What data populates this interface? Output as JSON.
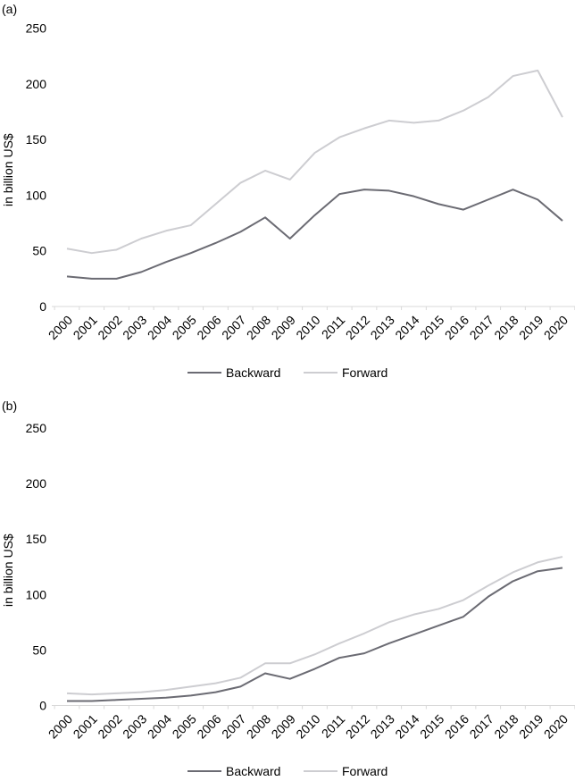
{
  "style": {
    "background": "#ffffff",
    "axis_color": "#d9d9d9",
    "text_color": "#000000",
    "backward_color": "#6b6b73",
    "forward_color": "#cdcdd1"
  },
  "panels": [
    {
      "label": "(a)",
      "ylabel": "in billion US$"
    },
    {
      "label": "(b)",
      "ylabel": "in billion US$"
    }
  ],
  "chart_data": [
    {
      "type": "line",
      "panel": "(a)",
      "title": "",
      "xlabel": "",
      "ylabel": "in billion US$",
      "x": [
        2000,
        2001,
        2002,
        2003,
        2004,
        2005,
        2006,
        2007,
        2008,
        2009,
        2010,
        2011,
        2012,
        2013,
        2014,
        2015,
        2016,
        2017,
        2018,
        2019,
        2020
      ],
      "series": [
        {
          "name": "Backward",
          "color": "#6b6b73",
          "values": [
            27,
            25,
            25,
            31,
            40,
            48,
            57,
            67,
            80,
            61,
            82,
            101,
            105,
            104,
            99,
            92,
            87,
            96,
            105,
            96,
            77
          ]
        },
        {
          "name": "Forward",
          "color": "#cdcdd1",
          "values": [
            52,
            48,
            51,
            61,
            68,
            73,
            92,
            111,
            122,
            114,
            138,
            152,
            160,
            167,
            165,
            167,
            176,
            188,
            207,
            212,
            170
          ]
        }
      ],
      "ylim": [
        0,
        250
      ],
      "yticks": [
        0,
        50,
        100,
        150,
        200,
        250
      ],
      "grid": false,
      "legend_position": "bottom"
    },
    {
      "type": "line",
      "panel": "(b)",
      "title": "",
      "xlabel": "",
      "ylabel": "in billion US$",
      "x": [
        2000,
        2001,
        2002,
        2003,
        2004,
        2005,
        2006,
        2007,
        2008,
        2009,
        2010,
        2011,
        2012,
        2013,
        2014,
        2015,
        2016,
        2017,
        2018,
        2019,
        2020
      ],
      "series": [
        {
          "name": "Backward",
          "color": "#6b6b73",
          "values": [
            4,
            4,
            5,
            6,
            7,
            9,
            12,
            17,
            29,
            24,
            33,
            43,
            47,
            56,
            64,
            72,
            80,
            98,
            112,
            121,
            124
          ]
        },
        {
          "name": "Forward",
          "color": "#cdcdd1",
          "values": [
            11,
            10,
            11,
            12,
            14,
            17,
            20,
            25,
            38,
            38,
            46,
            56,
            65,
            75,
            82,
            87,
            95,
            108,
            120,
            129,
            134
          ]
        }
      ],
      "ylim": [
        0,
        250
      ],
      "yticks": [
        0,
        50,
        100,
        150,
        200,
        250
      ],
      "grid": false,
      "legend_position": "bottom"
    }
  ]
}
